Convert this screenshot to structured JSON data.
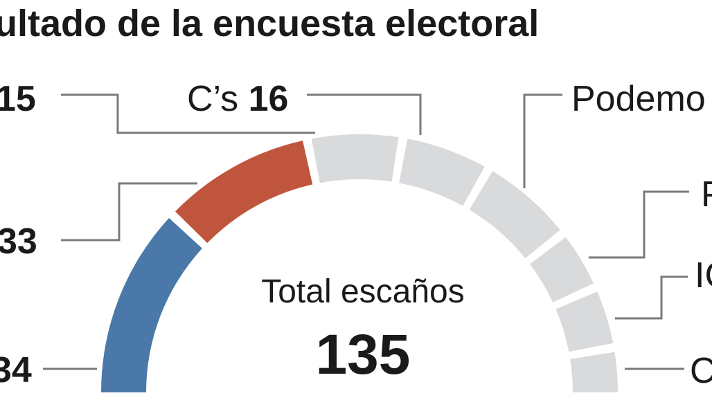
{
  "chart_data": {
    "type": "pie",
    "subtype": "parliament-semicircle",
    "title": "ultado de la encuesta electoral",
    "total_label": "Total escaños",
    "total": "135",
    "segments": [
      {
        "label": "",
        "value": "34",
        "color": "#4a78a8"
      },
      {
        "label": "",
        "value": "33",
        "color": "#c0553d"
      },
      {
        "label": "",
        "value": "15",
        "color": "#d9dadc"
      },
      {
        "label": "C’s",
        "value": "16",
        "color": "#d9dadc"
      },
      {
        "label": "Podemo",
        "value": null,
        "color": "#d9dadc"
      },
      {
        "label": "P",
        "value": null,
        "color": "#d9dadc"
      },
      {
        "label": "IC",
        "value": null,
        "color": "#d9dadc"
      },
      {
        "label": "C",
        "value": null,
        "color": "#d9dadc"
      }
    ]
  }
}
